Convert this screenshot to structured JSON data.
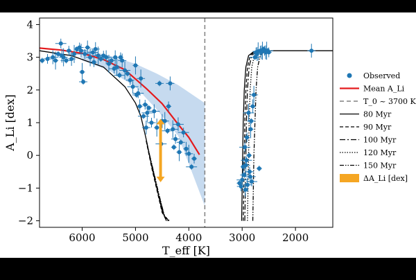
{
  "chart_data": {
    "type": "scatter",
    "xlabel": "T_eff [K]",
    "ylabel": "A_Li [dex]",
    "x_reversed": true,
    "xlim": [
      6800,
      1300
    ],
    "ylim": [
      -2.2,
      4.2
    ],
    "x_break": {
      "left_panel": [
        6800,
        3700
      ],
      "right_panel": [
        3400,
        1300
      ]
    },
    "xticks": [
      6000,
      5000,
      4000,
      3000,
      2000
    ],
    "yticks": [
      -2,
      -1,
      0,
      1,
      2,
      3,
      4
    ],
    "grid": false,
    "legend_position": "right-outside",
    "colors": {
      "observed": "#1f77b4",
      "mean": "#e41a1c",
      "band": "#bcd4ec",
      "delta": "#f5a623",
      "t0": "#808080",
      "isochrones": "#000000"
    },
    "legend": [
      {
        "key": "observed",
        "label": "Observed"
      },
      {
        "key": "mean",
        "label": "Mean A_Li"
      },
      {
        "key": "t0",
        "label": "T_0 ~ 3700 K"
      },
      {
        "key": "iso80",
        "label": "80 Myr"
      },
      {
        "key": "iso90",
        "label": "90 Myr"
      },
      {
        "key": "iso100",
        "label": "100 Myr"
      },
      {
        "key": "iso120",
        "label": "120 Myr"
      },
      {
        "key": "iso150",
        "label": "150 Myr"
      },
      {
        "key": "delta",
        "label": "ΔA_Li [dex]"
      }
    ],
    "t0_line": 3700,
    "delta_arrow": {
      "x": 4530,
      "y_top": 1.12,
      "y_bottom": -0.82
    },
    "mean_curve": [
      [
        6800,
        3.28
      ],
      [
        6400,
        3.22
      ],
      [
        6000,
        3.12
      ],
      [
        5600,
        2.93
      ],
      [
        5200,
        2.62
      ],
      [
        4800,
        2.05
      ],
      [
        4500,
        1.58
      ],
      [
        4200,
        0.95
      ],
      [
        4000,
        0.55
      ],
      [
        3800,
        0.02
      ]
    ],
    "band_upper": [
      [
        6000,
        3.25
      ],
      [
        5500,
        3.05
      ],
      [
        5000,
        2.8
      ],
      [
        4600,
        2.5
      ],
      [
        4200,
        2.15
      ],
      [
        3700,
        1.6
      ]
    ],
    "band_lower": [
      [
        6000,
        2.9
      ],
      [
        5500,
        2.6
      ],
      [
        5000,
        2.1
      ],
      [
        4600,
        1.4
      ],
      [
        4200,
        0.6
      ],
      [
        3700,
        -1.55
      ]
    ],
    "observed_left": [
      [
        6750,
        2.9
      ],
      [
        6650,
        2.95
      ],
      [
        6550,
        3.0
      ],
      [
        6500,
        2.9
      ],
      [
        6450,
        3.1
      ],
      [
        6400,
        3.42
      ],
      [
        6380,
        3.05
      ],
      [
        6350,
        3.0
      ],
      [
        6300,
        2.9
      ],
      [
        6250,
        3.2
      ],
      [
        6200,
        2.95
      ],
      [
        6150,
        3.1
      ],
      [
        6100,
        3.25
      ],
      [
        6050,
        3.3
      ],
      [
        6020,
        3.2
      ],
      [
        6000,
        2.55
      ],
      [
        5980,
        2.25
      ],
      [
        5950,
        3.1
      ],
      [
        5900,
        3.3
      ],
      [
        5850,
        3.0
      ],
      [
        5800,
        3.15
      ],
      [
        5780,
        2.85
      ],
      [
        5750,
        3.25
      ],
      [
        5700,
        3.05
      ],
      [
        5650,
        2.95
      ],
      [
        5600,
        3.05
      ],
      [
        5550,
        3.0
      ],
      [
        5500,
        2.8
      ],
      [
        5450,
        2.9
      ],
      [
        5400,
        2.65
      ],
      [
        5380,
        3.0
      ],
      [
        5350,
        2.7
      ],
      [
        5300,
        2.45
      ],
      [
        5280,
        3.0
      ],
      [
        5250,
        2.9
      ],
      [
        5200,
        2.6
      ],
      [
        5150,
        2.5
      ],
      [
        5100,
        2.3
      ],
      [
        5050,
        2.1
      ],
      [
        5000,
        2.75
      ],
      [
        4980,
        1.85
      ],
      [
        4950,
        1.9
      ],
      [
        4920,
        1.5
      ],
      [
        4900,
        2.35
      ],
      [
        4850,
        1.2
      ],
      [
        4820,
        1.55
      ],
      [
        4800,
        0.85
      ],
      [
        4780,
        1.3
      ],
      [
        4750,
        1.45
      ],
      [
        4700,
        1.0
      ],
      [
        4650,
        1.35
      ],
      [
        4600,
        0.85
      ],
      [
        4550,
        2.2
      ],
      [
        4520,
        0.35
      ],
      [
        4500,
        1.05
      ],
      [
        4450,
        1.05
      ],
      [
        4400,
        0.75
      ],
      [
        4380,
        1.5
      ],
      [
        4350,
        2.2
      ],
      [
        4300,
        0.8
      ],
      [
        4280,
        0.25
      ],
      [
        4250,
        0.5
      ],
      [
        4200,
        0.95
      ],
      [
        4180,
        0.1
      ],
      [
        4150,
        0.4
      ],
      [
        4100,
        0.7
      ],
      [
        4050,
        0.2
      ],
      [
        4000,
        0.05
      ],
      [
        3950,
        -0.35
      ],
      [
        3900,
        -0.1
      ]
    ],
    "observed_right": [
      [
        3050,
        -0.85
      ],
      [
        3020,
        -0.95
      ],
      [
        3000,
        -0.75
      ],
      [
        2980,
        -0.35
      ],
      [
        2960,
        -0.6
      ],
      [
        2950,
        0.25
      ],
      [
        2940,
        -1.05
      ],
      [
        2930,
        -0.3
      ],
      [
        2920,
        -0.15
      ],
      [
        2910,
        0.55
      ],
      [
        2900,
        -0.9
      ],
      [
        2880,
        1.3
      ],
      [
        2870,
        0.0
      ],
      [
        2860,
        -0.5
      ],
      [
        2850,
        -0.65
      ],
      [
        2840,
        0.8
      ],
      [
        2830,
        1.05
      ],
      [
        2820,
        -0.8
      ],
      [
        2800,
        1.5
      ],
      [
        2780,
        1.85
      ],
      [
        2760,
        3.0
      ],
      [
        2740,
        3.15
      ],
      [
        2720,
        3.1
      ],
      [
        2700,
        3.18
      ],
      [
        2680,
        -0.4
      ],
      [
        2660,
        3.2
      ],
      [
        2640,
        3.15
      ],
      [
        2620,
        3.2
      ],
      [
        2600,
        3.25
      ],
      [
        2580,
        3.2
      ],
      [
        2560,
        3.15
      ],
      [
        2540,
        3.2
      ],
      [
        2520,
        3.2
      ],
      [
        2500,
        3.15
      ],
      [
        1700,
        3.2
      ]
    ],
    "isochrones": [
      {
        "key": "iso80",
        "label": "80 Myr",
        "dash": "",
        "left": [
          [
            6800,
            3.2
          ],
          [
            6200,
            3.05
          ],
          [
            5600,
            2.7
          ],
          [
            5200,
            2.1
          ],
          [
            5000,
            1.6
          ],
          [
            4900,
            1.2
          ],
          [
            4800,
            0.5
          ],
          [
            4700,
            -0.3
          ],
          [
            4600,
            -1.0
          ],
          [
            4500,
            -1.7
          ],
          [
            4420,
            -2.0
          ]
        ],
        "right": [
          [
            3010,
            -2.0
          ],
          [
            3000,
            -1.0
          ],
          [
            2990,
            0.0
          ],
          [
            2980,
            1.0
          ],
          [
            2960,
            2.0
          ],
          [
            2930,
            2.7
          ],
          [
            2880,
            3.05
          ],
          [
            2800,
            3.15
          ],
          [
            2700,
            3.18
          ],
          [
            2400,
            3.2
          ],
          [
            1200,
            3.2
          ]
        ]
      },
      {
        "key": "iso90",
        "label": "90 Myr",
        "dash": "5,3",
        "left": [
          [
            4800,
            0.45
          ],
          [
            4700,
            -0.35
          ],
          [
            4600,
            -1.05
          ],
          [
            4500,
            -1.75
          ],
          [
            4400,
            -2.0
          ]
        ],
        "right": [
          [
            2980,
            -2.0
          ],
          [
            2970,
            -1.0
          ],
          [
            2960,
            0.0
          ],
          [
            2950,
            1.0
          ],
          [
            2930,
            2.0
          ],
          [
            2900,
            2.7
          ],
          [
            2850,
            3.05
          ],
          [
            2780,
            3.15
          ]
        ]
      },
      {
        "key": "iso100",
        "label": "100 Myr",
        "dash": "8,3,2,3",
        "left": [
          [
            4790,
            0.4
          ],
          [
            4680,
            -0.4
          ],
          [
            4580,
            -1.1
          ],
          [
            4470,
            -1.8
          ],
          [
            4380,
            -2.0
          ]
        ],
        "right": [
          [
            2950,
            -2.0
          ],
          [
            2940,
            -1.0
          ],
          [
            2930,
            0.0
          ],
          [
            2920,
            1.0
          ],
          [
            2900,
            2.0
          ],
          [
            2870,
            2.7
          ],
          [
            2820,
            3.05
          ],
          [
            2750,
            3.15
          ]
        ]
      },
      {
        "key": "iso120",
        "label": "120 Myr",
        "dash": "1.5,2",
        "left": [
          [
            4785,
            0.35
          ],
          [
            4670,
            -0.45
          ],
          [
            4570,
            -1.15
          ],
          [
            4460,
            -1.85
          ],
          [
            4370,
            -2.0
          ]
        ],
        "right": [
          [
            2900,
            -2.0
          ],
          [
            2890,
            -1.0
          ],
          [
            2880,
            0.0
          ],
          [
            2870,
            1.0
          ],
          [
            2850,
            2.0
          ],
          [
            2820,
            2.7
          ],
          [
            2770,
            3.05
          ],
          [
            2700,
            3.15
          ]
        ]
      },
      {
        "key": "iso150",
        "label": "150 Myr",
        "dash": "6,2,1.5,2,1.5,2",
        "left": [
          [
            4780,
            0.3
          ],
          [
            4660,
            -0.5
          ],
          [
            4560,
            -1.2
          ],
          [
            4450,
            -1.9
          ],
          [
            4360,
            -2.0
          ]
        ],
        "right": [
          [
            2800,
            -2.0
          ],
          [
            2790,
            -1.0
          ],
          [
            2780,
            0.0
          ],
          [
            2760,
            1.0
          ],
          [
            2740,
            2.0
          ],
          [
            2710,
            2.7
          ],
          [
            2660,
            3.05
          ],
          [
            2600,
            3.15
          ]
        ]
      }
    ]
  }
}
